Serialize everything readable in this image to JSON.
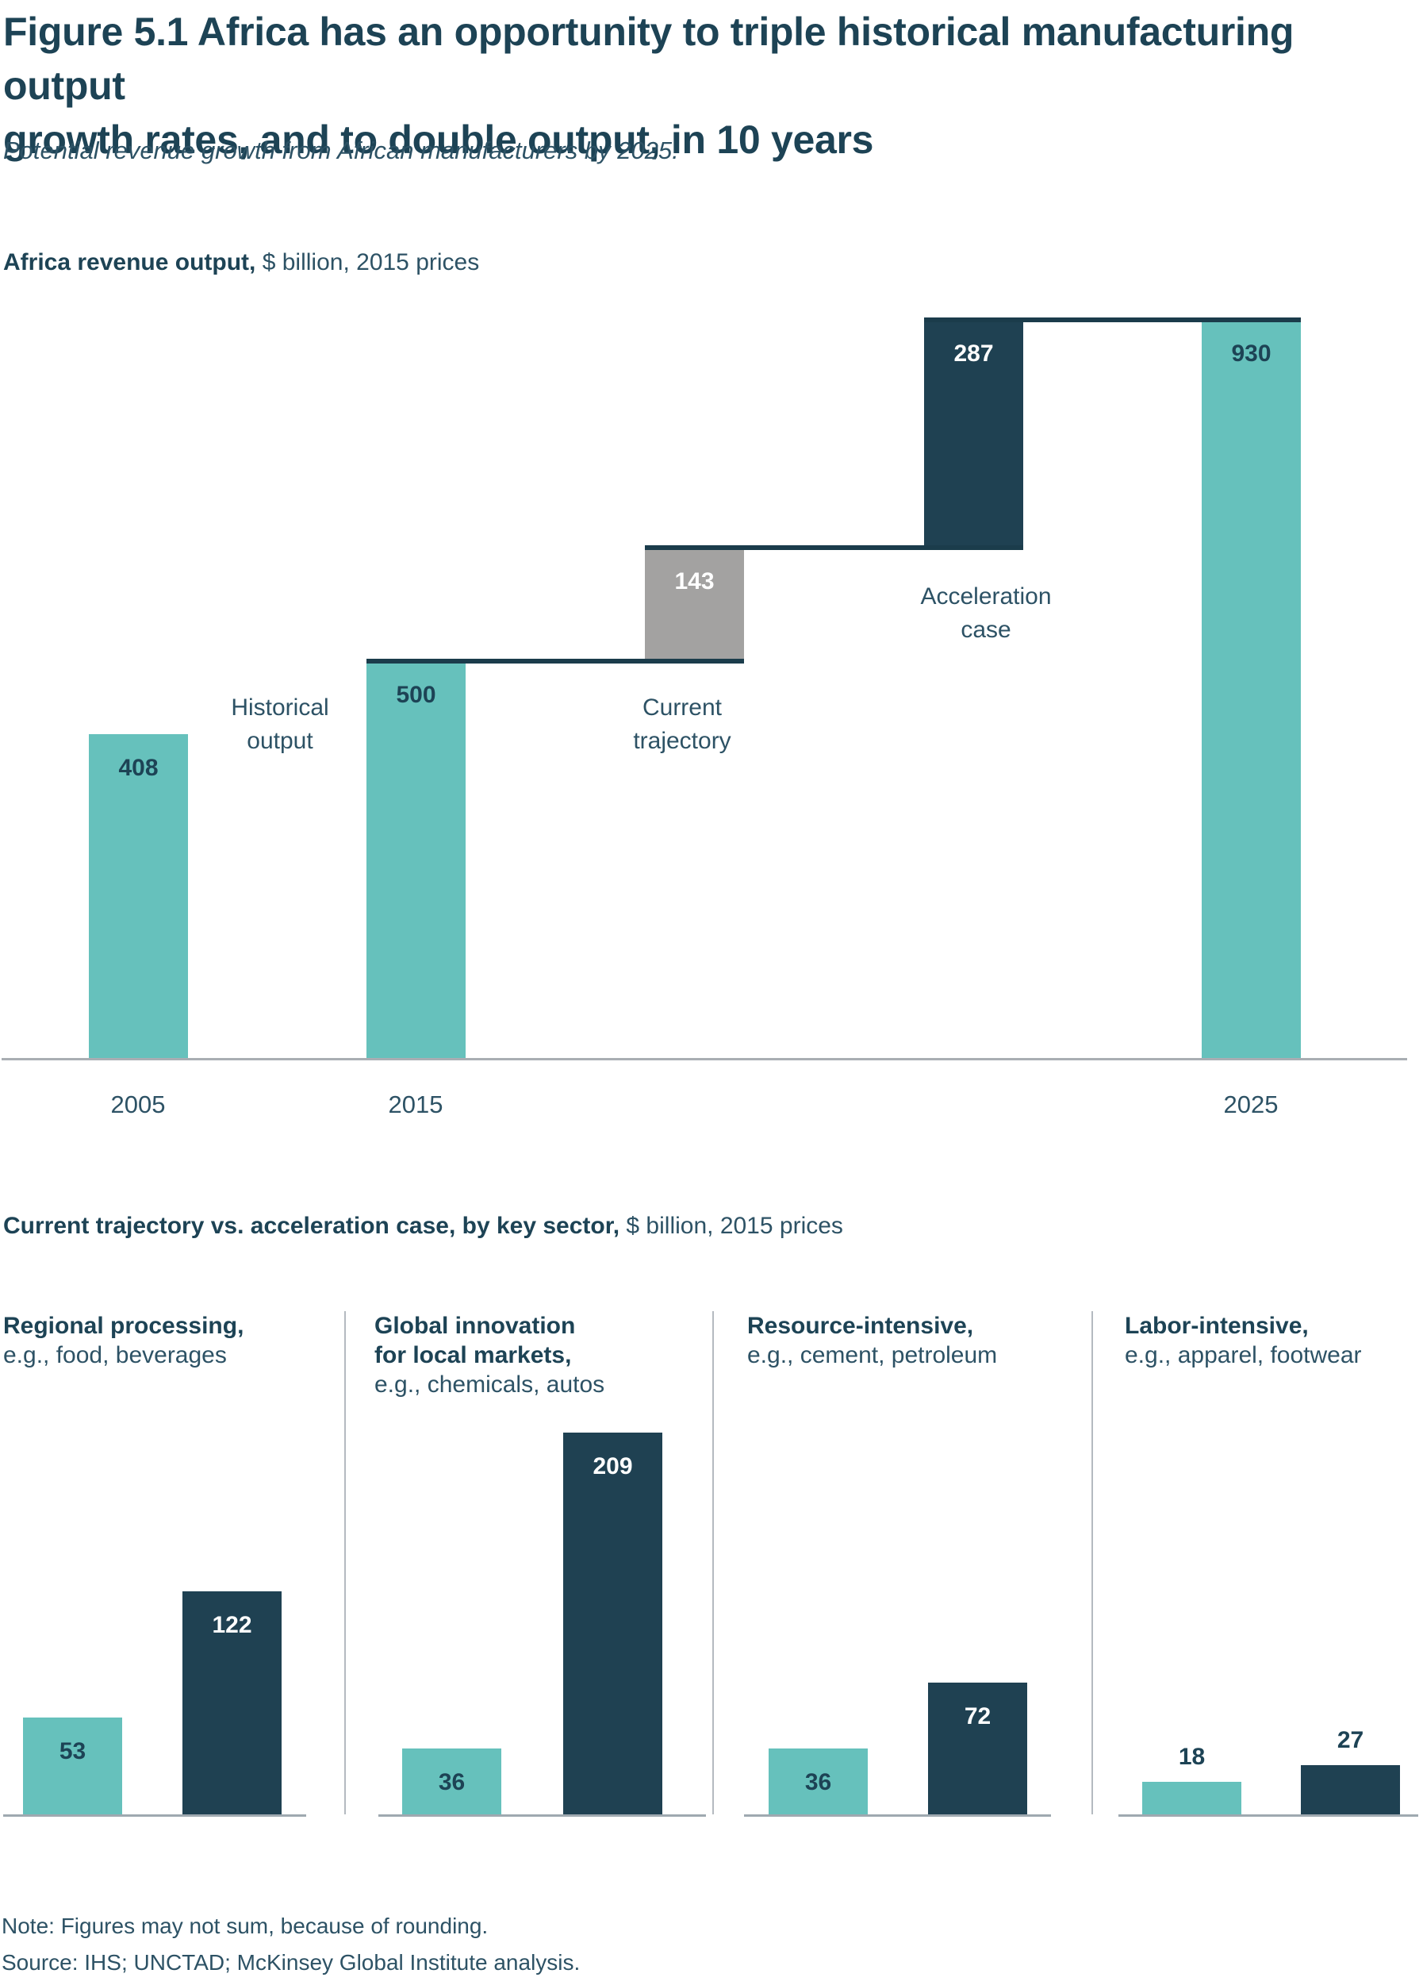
{
  "title": "Figure 5.1 Africa has an opportunity to triple historical manufacturing output\ngrowth rates, and to double output, in 10 years",
  "subtitle": "Potential revenue growth from African manufacturers by 2025.",
  "note": "Note: Figures may not sum, because of rounding.",
  "source": "Source: IHS; UNCTAD; McKinsey Global Institute analysis.",
  "colors": {
    "teal": "#66c1bc",
    "navy": "#1f4152",
    "gray": "#a3a2a1",
    "ink": "#1d4355",
    "soft": "#2d5265",
    "white": "#ffffff",
    "connector": "#1b3c4b",
    "axis1": "#a9aeb3",
    "axis2": "#9fa9b0",
    "divider": "#b4bac0"
  },
  "chart_data": [
    {
      "type": "bar",
      "subtype": "waterfall",
      "title": "Africa revenue output",
      "title_units": " $ billion, 2015 prices",
      "ylim": [
        0,
        930
      ],
      "grid": false,
      "bars": [
        {
          "category": "2005",
          "label": "408",
          "value": 408,
          "base": 0,
          "color": "teal",
          "label_color": "ink"
        },
        {
          "category": "2015",
          "label": "500",
          "value": 500,
          "base": 0,
          "color": "teal",
          "label_color": "ink"
        },
        {
          "category": "Current trajectory uplift",
          "label": "143",
          "value": 143,
          "base": 500,
          "color": "gray",
          "label_color": "white"
        },
        {
          "category": "Acceleration case uplift",
          "label": "287",
          "value": 287,
          "base": 643,
          "color": "navy",
          "label_color": "white"
        },
        {
          "category": "2025",
          "label": "930",
          "value": 930,
          "base": 0,
          "color": "teal",
          "label_color": "ink"
        }
      ],
      "annotations": [
        "Historical\noutput",
        "Current\ntrajectory",
        "Acceleration\ncase"
      ],
      "x_labels": [
        "2005",
        "2015",
        "2025"
      ]
    },
    {
      "type": "bar",
      "subtype": "grouped-panels",
      "title": "Current trajectory vs. acceleration case, by key sector,",
      "title_units": " $ billion, 2015 prices",
      "series_names": [
        "Current trajectory",
        "Acceleration case"
      ],
      "panels": [
        {
          "heading": "Regional processing,",
          "subheading": "e.g., food, beverages",
          "bars": [
            {
              "label": "53",
              "value": 53,
              "color": "teal",
              "label_pos": "inside",
              "label_color": "ink"
            },
            {
              "label": "122",
              "value": 122,
              "color": "navy",
              "label_pos": "inside",
              "label_color": "white"
            }
          ]
        },
        {
          "heading": "Global innovation\nfor local markets,",
          "subheading": "e.g., chemicals, autos",
          "bars": [
            {
              "label": "36",
              "value": 36,
              "color": "teal",
              "label_pos": "inside",
              "label_color": "ink"
            },
            {
              "label": "209",
              "value": 209,
              "color": "navy",
              "label_pos": "inside",
              "label_color": "white"
            }
          ]
        },
        {
          "heading": "Resource-intensive,",
          "subheading": "e.g., cement, petroleum",
          "bars": [
            {
              "label": "36",
              "value": 36,
              "color": "teal",
              "label_pos": "inside",
              "label_color": "ink"
            },
            {
              "label": "72",
              "value": 72,
              "color": "navy",
              "label_pos": "inside",
              "label_color": "white"
            }
          ]
        },
        {
          "heading": "Labor-intensive,",
          "subheading": "e.g., apparel, footwear",
          "bars": [
            {
              "label": "18",
              "value": 18,
              "color": "teal",
              "label_pos": "above",
              "label_color": "ink"
            },
            {
              "label": "27",
              "value": 27,
              "color": "navy",
              "label_pos": "above",
              "label_color": "ink"
            }
          ]
        }
      ]
    }
  ]
}
